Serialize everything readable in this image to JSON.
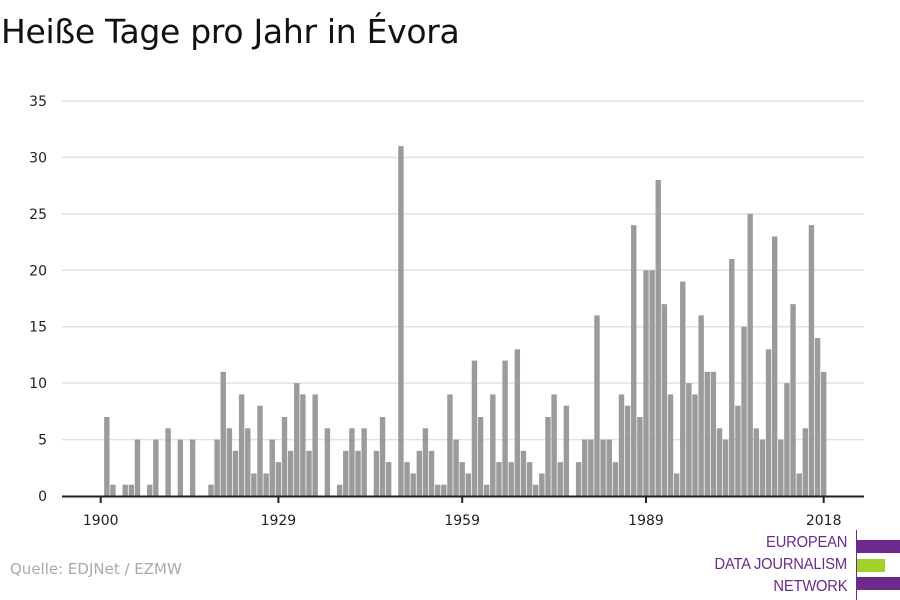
{
  "colors": {
    "bar": "#9b9b9b",
    "grid": "#e2e2e2",
    "axis": "#222222",
    "brand_purple": "#6b2a8c",
    "brand_green": "#a0d22a"
  },
  "chart_data": {
    "type": "bar",
    "title": "Heiße Tage pro Jahr in Évora",
    "xlabel": "",
    "ylabel": "",
    "ylim": [
      0,
      35
    ],
    "yticks": [
      "0",
      "5",
      "10",
      "15",
      "20",
      "25",
      "30",
      "35"
    ],
    "xticks": [
      "1900",
      "1929",
      "1959",
      "1989",
      "2018"
    ],
    "grid": true,
    "x_start": 1901,
    "x_end": 2018,
    "values": [
      7,
      1,
      0,
      1,
      1,
      5,
      0,
      1,
      5,
      0,
      6,
      0,
      5,
      0,
      5,
      0,
      0,
      1,
      5,
      11,
      6,
      4,
      9,
      6,
      2,
      8,
      2,
      5,
      3,
      7,
      4,
      10,
      9,
      4,
      9,
      0,
      6,
      0,
      1,
      4,
      6,
      4,
      6,
      0,
      4,
      7,
      3,
      0,
      31,
      3,
      2,
      4,
      6,
      4,
      1,
      1,
      9,
      5,
      3,
      2,
      12,
      7,
      1,
      9,
      3,
      12,
      3,
      13,
      4,
      3,
      1,
      2,
      7,
      9,
      3,
      8,
      0,
      3,
      5,
      5,
      16,
      5,
      5,
      3,
      9,
      8,
      24,
      7,
      20,
      20,
      28,
      17,
      9,
      2,
      19,
      10,
      9,
      16,
      11,
      11,
      6,
      5,
      21,
      8,
      15,
      25,
      6,
      5,
      13,
      23,
      5,
      10,
      17,
      2,
      6,
      24,
      14,
      11
    ]
  },
  "source": "Quelle: EDJNet / EZMW",
  "logo": {
    "line1": "EUROPEAN",
    "line2": "DATA JOURNALISM",
    "line3": "NETWORK"
  }
}
